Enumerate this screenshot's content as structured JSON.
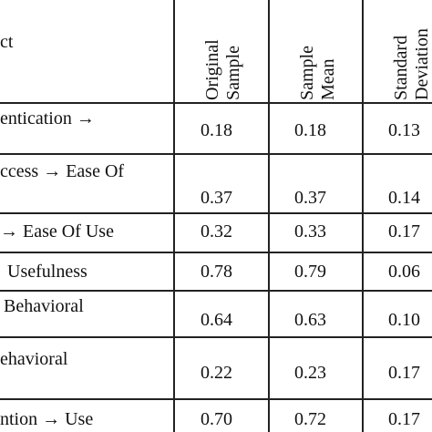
{
  "header": {
    "construct_label": "ct",
    "columns": [
      {
        "line1": "Original",
        "line2": "Sample"
      },
      {
        "line1": "Sample",
        "line2": "Mean"
      },
      {
        "line1": "Standard",
        "line2": "Deviation"
      }
    ]
  },
  "rows": [
    {
      "label1": "entication →",
      "label2": "",
      "original": "0.18",
      "mean": "0.18",
      "std": "0.13"
    },
    {
      "label1": "ccess → Ease Of",
      "label2": "",
      "original": "0.37",
      "mean": "0.37",
      "std": "0.14"
    },
    {
      "label1": "→ Ease Of Use",
      "label2": "",
      "original": "0.32",
      "mean": "0.33",
      "std": "0.17"
    },
    {
      "label1": "Usefulness",
      "label2": "",
      "original": "0.78",
      "mean": "0.79",
      "std": "0.06"
    },
    {
      "label1": "Behavioral",
      "label2": "",
      "original": "0.64",
      "mean": "0.63",
      "std": "0.10"
    },
    {
      "label1": "ehavioral",
      "label2": "",
      "original": "0.22",
      "mean": "0.23",
      "std": "0.17"
    },
    {
      "label1": "ntion → Use",
      "label2": "",
      "original": "0.70",
      "mean": "0.72",
      "std": "0.17"
    }
  ]
}
